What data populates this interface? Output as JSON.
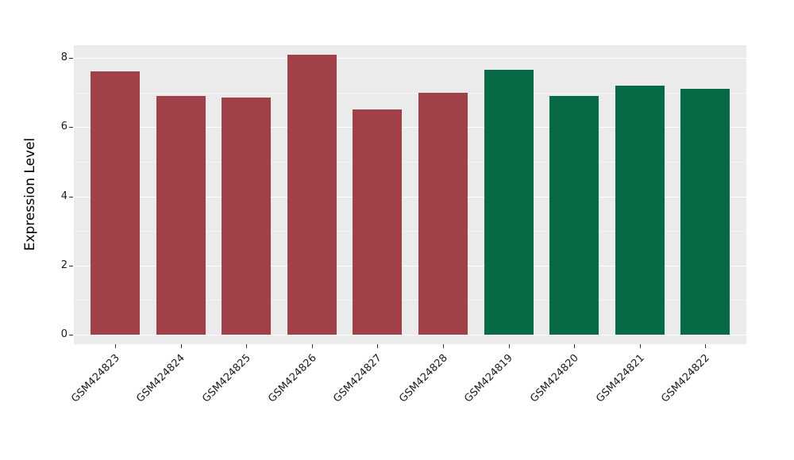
{
  "chart_data": {
    "type": "bar",
    "title": "",
    "xlabel": "",
    "ylabel": "Expression Level",
    "categories": [
      "GSM424823",
      "GSM424824",
      "GSM424825",
      "GSM424826",
      "GSM424827",
      "GSM424828",
      "GSM424819",
      "GSM424820",
      "GSM424821",
      "GSM424822"
    ],
    "values": [
      7.6,
      6.9,
      6.85,
      8.1,
      6.5,
      7.0,
      7.65,
      6.9,
      7.2,
      7.1
    ],
    "groups": [
      0,
      0,
      0,
      0,
      0,
      0,
      1,
      1,
      1,
      1
    ],
    "group_colors": [
      "#A04049",
      "#086A45"
    ],
    "ylim": [
      0,
      8.4
    ],
    "yticks": [
      0,
      2,
      4,
      6,
      8
    ],
    "ytick_labels": [
      "0",
      "2",
      "4",
      "6",
      "8"
    ],
    "yticks_minor": [
      1,
      3,
      5,
      7
    ],
    "panel_bg": "#EBEBEB",
    "grid_color": "#FFFFFF",
    "legend": "none"
  }
}
